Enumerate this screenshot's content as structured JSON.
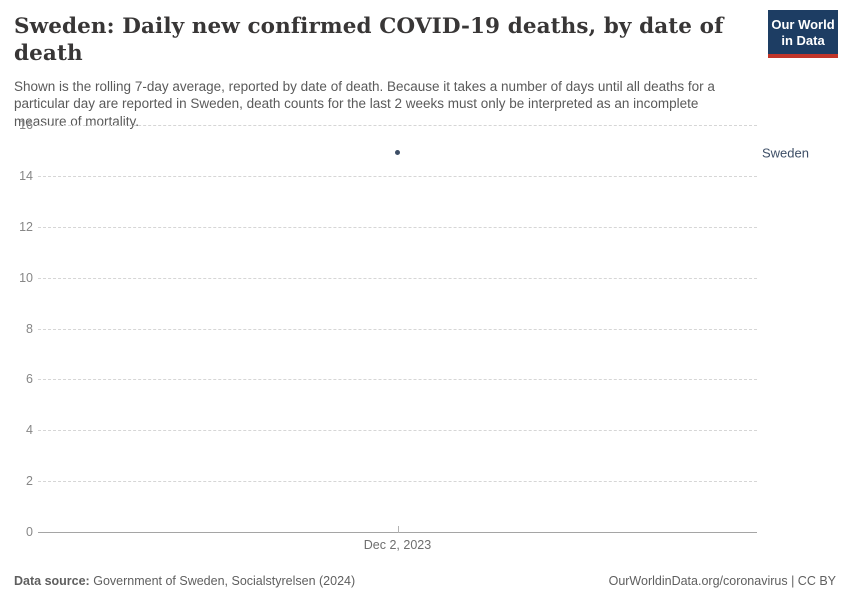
{
  "header": {
    "title": "Sweden: Daily new confirmed COVID-19 deaths, by date of death",
    "subtitle": "Shown is the rolling 7-day average, reported by date of death. Because it takes a number of days until all deaths for a particular day are reported in Sweden, death counts for the last 2 weeks must only be interpreted as an incomplete measure of mortality.",
    "logo": {
      "line1": "Our World",
      "line2": "in Data",
      "bg_color": "#1d3d63",
      "accent_color": "#c13529"
    }
  },
  "chart_data": {
    "type": "scatter",
    "title": "Sweden: Daily new confirmed COVID-19 deaths, by date of death",
    "x": [
      "Dec 2, 2023"
    ],
    "series": [
      {
        "name": "Sweden",
        "color": "#3d4e66",
        "values": [
          14.9
        ]
      }
    ],
    "yticks": [
      0,
      2,
      4,
      6,
      8,
      10,
      12,
      14,
      16
    ],
    "ylim": [
      0,
      16
    ],
    "xlabel": "",
    "ylabel": "",
    "grid": true,
    "legend_position": "right"
  },
  "footer": {
    "source_label": "Data source:",
    "source_text": "Government of Sweden, Socialstyrelsen (2024)",
    "rights": "OurWorldinData.org/coronavirus | CC BY"
  }
}
